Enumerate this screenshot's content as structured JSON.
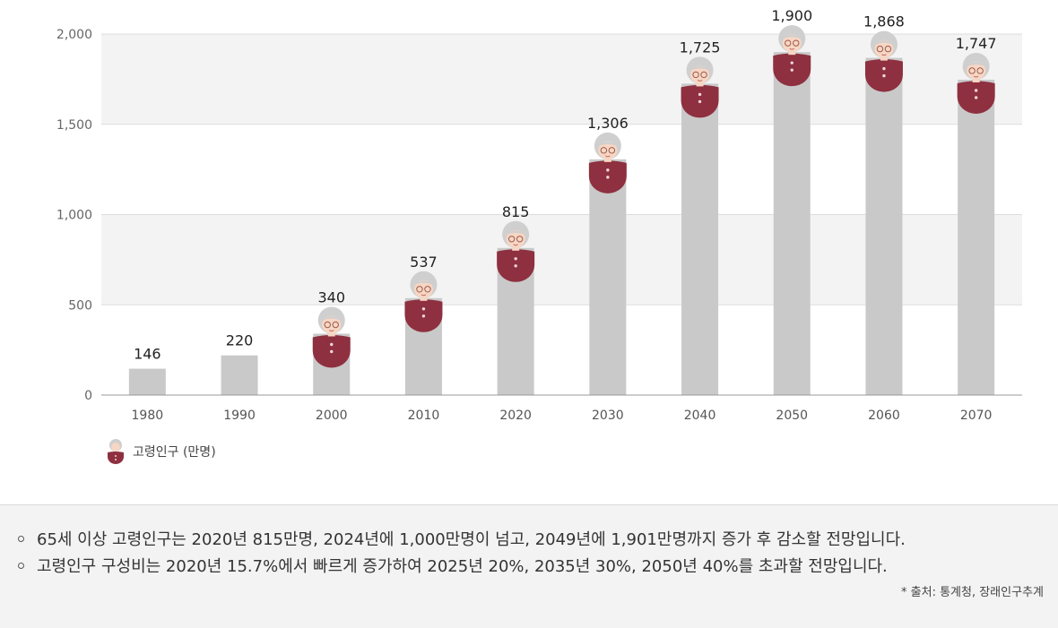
{
  "chart_data": {
    "type": "bar",
    "categories": [
      "1980",
      "1990",
      "2000",
      "2010",
      "2020",
      "2030",
      "2040",
      "2050",
      "2060",
      "2070"
    ],
    "values": [
      146,
      220,
      340,
      537,
      815,
      1306,
      1725,
      1900,
      1868,
      1747
    ],
    "value_labels": [
      "146",
      "220",
      "340",
      "537",
      "815",
      "1,306",
      "1,725",
      "1,900",
      "1,868",
      "1,747"
    ],
    "ylim": [
      0,
      2000
    ],
    "yticks": [
      0,
      500,
      1000,
      1500,
      2000
    ],
    "ytick_labels": [
      "0",
      "500",
      "1,000",
      "1,500",
      "2,000"
    ],
    "series_name": "고령인구 (만명)",
    "legend_position": "bottom-left",
    "figure_from_index": 2,
    "colors": {
      "bar": "#c9c9c9",
      "band": "#f3f3f3",
      "grid": "#dddddd",
      "baseline": "#999999",
      "body": "#8e3040",
      "skin": "#f7d6c4",
      "hair": "#cfcfcf",
      "button": "#f0d5da"
    }
  },
  "notes": [
    "65세 이상 고령인구는 2020년 815만명, 2024년에 1,000만명이 넘고, 2049년에 1,901만명까지 증가 후 감소할 전망입니다.",
    "고령인구 구성비는 2020년 15.7%에서 빠르게 증가하여 2025년 20%, 2035년 30%, 2050년 40%를 초과할 전망입니다."
  ],
  "source": "* 출처: 통계청, 장래인구추계"
}
